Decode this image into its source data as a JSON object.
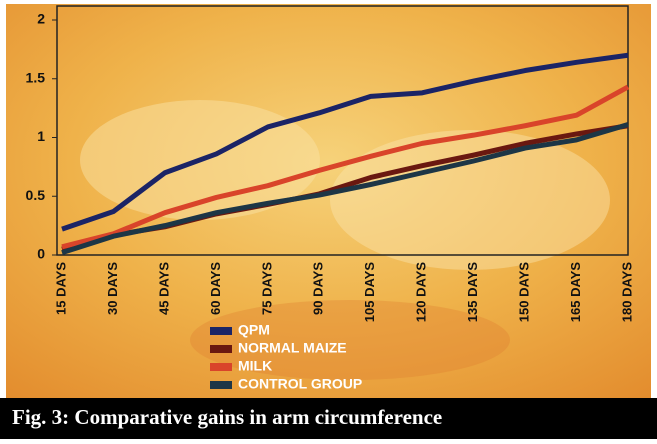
{
  "chart_data": {
    "type": "line",
    "caption": "Fig. 3: Comparative gains in arm circumference",
    "categories": [
      "15 DAYS",
      "30 DAYS",
      "45 DAYS",
      "60 DAYS",
      "75 DAYS",
      "90 DAYS",
      "105 DAYS",
      "120 DAYS",
      "135 DAYS",
      "150 DAYS",
      "165 DAYS",
      "180 DAYS"
    ],
    "series": [
      {
        "name": "QPM",
        "color": "#1b2466",
        "values": [
          0.22,
          0.37,
          0.7,
          0.86,
          1.09,
          1.21,
          1.35,
          1.38,
          1.48,
          1.57,
          1.64,
          1.7
        ]
      },
      {
        "name": "NORMAL MAIZE",
        "color": "#6a1810",
        "values": [
          0.05,
          0.17,
          0.24,
          0.35,
          0.43,
          0.52,
          0.66,
          0.76,
          0.85,
          0.95,
          1.03,
          1.1
        ]
      },
      {
        "name": "MILK",
        "color": "#d9442a",
        "values": [
          0.07,
          0.18,
          0.36,
          0.49,
          0.59,
          0.72,
          0.84,
          0.95,
          1.02,
          1.1,
          1.19,
          1.43
        ]
      },
      {
        "name": "CONTROL GROUP",
        "color": "#1d3646",
        "values": [
          0.02,
          0.16,
          0.25,
          0.36,
          0.44,
          0.51,
          0.6,
          0.7,
          0.8,
          0.91,
          0.98,
          1.11
        ]
      }
    ],
    "ylim": [
      0,
      2
    ],
    "yticks": [
      0,
      {
        "value": 0.5,
        "label": "0.5"
      },
      1,
      {
        "value": 1.5,
        "label": "1.5"
      },
      2
    ]
  }
}
